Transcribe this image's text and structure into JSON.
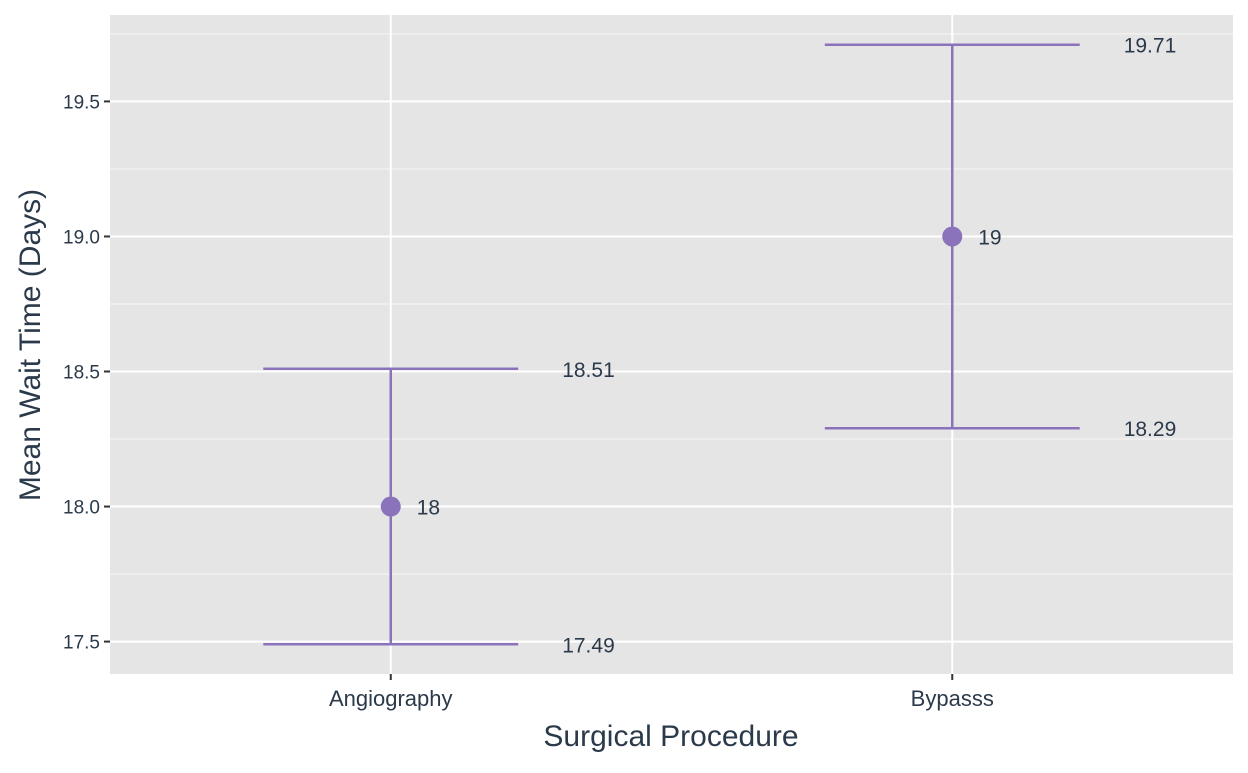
{
  "chart_data": {
    "type": "errorbar",
    "categories": [
      "Angiography",
      "Bypasss"
    ],
    "series": [
      {
        "points": [
          {
            "category": "Angiography",
            "mean": 18,
            "lower": 17.49,
            "upper": 18.51,
            "mean_label": "18",
            "lower_label": "17.49",
            "upper_label": "18.51"
          },
          {
            "category": "Bypasss",
            "mean": 19,
            "lower": 18.29,
            "upper": 19.71,
            "mean_label": "19",
            "lower_label": "18.29",
            "upper_label": "19.71"
          }
        ]
      }
    ],
    "xlabel": "Surgical Procedure",
    "ylabel": "Mean Wait Time (Days)",
    "ylim": [
      17.38,
      19.82
    ],
    "yticks": [
      17.5,
      18.0,
      18.5,
      19.0,
      19.5
    ],
    "ytick_labels": [
      "17.5",
      "18.0",
      "18.5",
      "19.0",
      "19.5"
    ],
    "grid": true,
    "colors": {
      "marker": "#8a73bb",
      "panel": "#e5e5e5",
      "grid": "#ffffff",
      "text": "#2b3a4a"
    }
  }
}
